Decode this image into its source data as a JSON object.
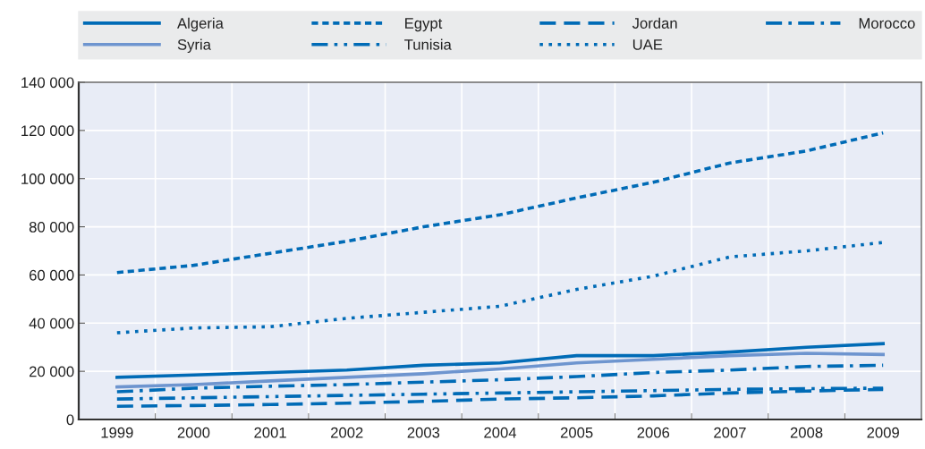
{
  "chart_data": {
    "type": "line",
    "categories": [
      "1999",
      "2000",
      "2001",
      "2002",
      "2003",
      "2004",
      "2005",
      "2006",
      "2007",
      "2008",
      "2009"
    ],
    "series": [
      {
        "name": "Algeria",
        "color": "#006bb6",
        "line_style": "solid",
        "values": [
          17500,
          18500,
          19500,
          20500,
          22500,
          23500,
          26500,
          26500,
          28000,
          30000,
          31500
        ]
      },
      {
        "name": "Egypt",
        "color": "#006bb6",
        "line_style": "shortdash",
        "values": [
          61000,
          64000,
          69000,
          74000,
          80000,
          85000,
          92000,
          98500,
          106500,
          111500,
          119000
        ]
      },
      {
        "name": "Jordan",
        "color": "#006bb6",
        "line_style": "dashed",
        "values": [
          5500,
          5800,
          6200,
          6800,
          7500,
          8500,
          9000,
          9800,
          11000,
          11800,
          12500
        ]
      },
      {
        "name": "Morocco",
        "color": "#006bb6",
        "line_style": "dashdot",
        "values": [
          11500,
          13000,
          13800,
          14500,
          15500,
          16500,
          17800,
          19500,
          20500,
          22000,
          22500
        ]
      },
      {
        "name": "Syria",
        "color": "#6e95cf",
        "line_style": "solid",
        "values": [
          13500,
          14500,
          16000,
          17500,
          19000,
          21000,
          23500,
          25000,
          26500,
          27500,
          27000
        ]
      },
      {
        "name": "Tunisia",
        "color": "#006bb6",
        "line_style": "dashdotdot",
        "values": [
          8500,
          9000,
          9500,
          10000,
          10500,
          11000,
          11500,
          12000,
          12500,
          12800,
          13000
        ]
      },
      {
        "name": "UAE",
        "color": "#006bb6",
        "line_style": "dotted",
        "values": [
          36000,
          38000,
          38500,
          42000,
          44500,
          47000,
          54000,
          59500,
          67500,
          70000,
          73500
        ]
      }
    ],
    "ylim": [
      0,
      140000
    ],
    "yticks": [
      {
        "value": 0,
        "label": "0"
      },
      {
        "value": 20000,
        "label": "20 000"
      },
      {
        "value": 40000,
        "label": "40 000"
      },
      {
        "value": 60000,
        "label": "60 000"
      },
      {
        "value": 80000,
        "label": "80 000"
      },
      {
        "value": 100000,
        "label": "100 000"
      },
      {
        "value": 120000,
        "label": "120 000"
      },
      {
        "value": 140000,
        "label": "140 000"
      }
    ],
    "grid": true,
    "legend": "top",
    "marker": "none"
  }
}
